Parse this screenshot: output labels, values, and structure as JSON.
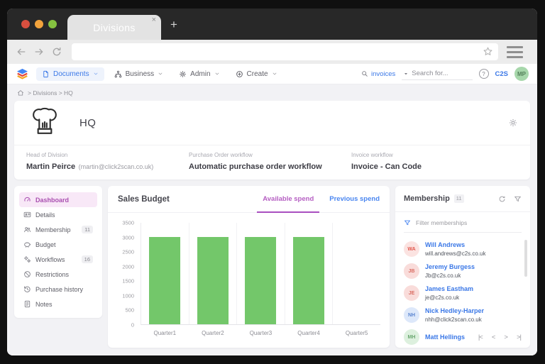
{
  "browser": {
    "tab_title": "Divisions",
    "tab_close_icon": "×",
    "new_tab_icon": "+"
  },
  "nav": {
    "menu": [
      {
        "label": "Documents",
        "icon": "documents-icon",
        "active": true
      },
      {
        "label": "Business",
        "icon": "business-icon",
        "active": false
      },
      {
        "label": "Admin",
        "icon": "admin-icon",
        "active": false
      },
      {
        "label": "Create",
        "icon": "create-icon",
        "active": false
      }
    ],
    "search_scope": "invoices",
    "search_placeholder": "Search for...",
    "help_label": "?",
    "org_label": "C2S",
    "avatar_initials": "MP"
  },
  "breadcrumb": {
    "separator": ">",
    "items": [
      "Divisions",
      "HQ"
    ]
  },
  "division": {
    "name": "HQ",
    "fields": [
      {
        "label": "Head of Division",
        "value": "Martin Peirce",
        "extra": "(martin@click2scan.co.uk)"
      },
      {
        "label": "Purchase Order workflow",
        "value": "Automatic purchase order workflow",
        "extra": ""
      },
      {
        "label": "Invoice workflow",
        "value": "Invoice - Can Code",
        "extra": ""
      }
    ]
  },
  "sidebar": {
    "items": [
      {
        "label": "Dashboard",
        "icon": "dashboard-icon",
        "active": true,
        "badge": ""
      },
      {
        "label": "Details",
        "icon": "details-icon",
        "active": false,
        "badge": ""
      },
      {
        "label": "Membership",
        "icon": "membership-icon",
        "active": false,
        "badge": "11"
      },
      {
        "label": "Budget",
        "icon": "budget-icon",
        "active": false,
        "badge": ""
      },
      {
        "label": "Workflows",
        "icon": "workflows-icon",
        "active": false,
        "badge": "16"
      },
      {
        "label": "Restrictions",
        "icon": "restrictions-icon",
        "active": false,
        "badge": ""
      },
      {
        "label": "Purchase history",
        "icon": "history-icon",
        "active": false,
        "badge": ""
      },
      {
        "label": "Notes",
        "icon": "notes-icon",
        "active": false,
        "badge": ""
      }
    ]
  },
  "chart_card": {
    "title": "Sales Budget",
    "tabs": [
      {
        "label": "Available spend",
        "active": true
      },
      {
        "label": "Previous spend",
        "active": false
      }
    ]
  },
  "chart_data": {
    "type": "bar",
    "title": "Sales Budget",
    "categories": [
      "Quarter1",
      "Quarter2",
      "Quarter3",
      "Quarter4",
      "Quarter5"
    ],
    "values": [
      3000,
      3000,
      3000,
      3000,
      0
    ],
    "xlabel": "",
    "ylabel": "",
    "ylim": [
      0,
      3500
    ],
    "ytick_step": 500,
    "bar_color": "#73c76a",
    "grid": true,
    "legend": false,
    "active_series": "Available spend"
  },
  "membership": {
    "title": "Membership",
    "badge": "11",
    "filter_placeholder": "Filter memberships",
    "members": [
      {
        "initials": "WA",
        "name": "Will Andrews",
        "email": "will.andrews@c2s.co.uk",
        "avatar_bg": "#fbe3e1",
        "avatar_color": "#e2574c"
      },
      {
        "initials": "JB",
        "name": "Jeremy Burgess",
        "email": "Jb@c2s.co.uk",
        "avatar_bg": "#f9dcda",
        "avatar_color": "#d96c62"
      },
      {
        "initials": "JE",
        "name": "James Eastham",
        "email": "je@c2s.co.uk",
        "avatar_bg": "#f9dcda",
        "avatar_color": "#d96c62"
      },
      {
        "initials": "NH",
        "name": "Nick Hedley-Harper",
        "email": "nhh@click2scan.co.uk",
        "avatar_bg": "#dde8fa",
        "avatar_color": "#5d87d1"
      },
      {
        "initials": "MH",
        "name": "Matt Hellings",
        "email": "",
        "avatar_bg": "#ddf0de",
        "avatar_color": "#6aa76f"
      }
    ],
    "pagination": [
      {
        "symbol": "|<",
        "name": "first-page-button"
      },
      {
        "symbol": "<",
        "name": "prev-page-button"
      },
      {
        "symbol": ">",
        "name": "next-page-button"
      },
      {
        "symbol": ">|",
        "name": "last-page-button"
      }
    ]
  },
  "colors": {
    "accent_blue": "#3b78e7",
    "accent_purple": "#a94fc0",
    "bar_green": "#73c76a",
    "active_sidebar_bg": "#f8e8f7",
    "avatar_green": "#a7d7ab"
  }
}
